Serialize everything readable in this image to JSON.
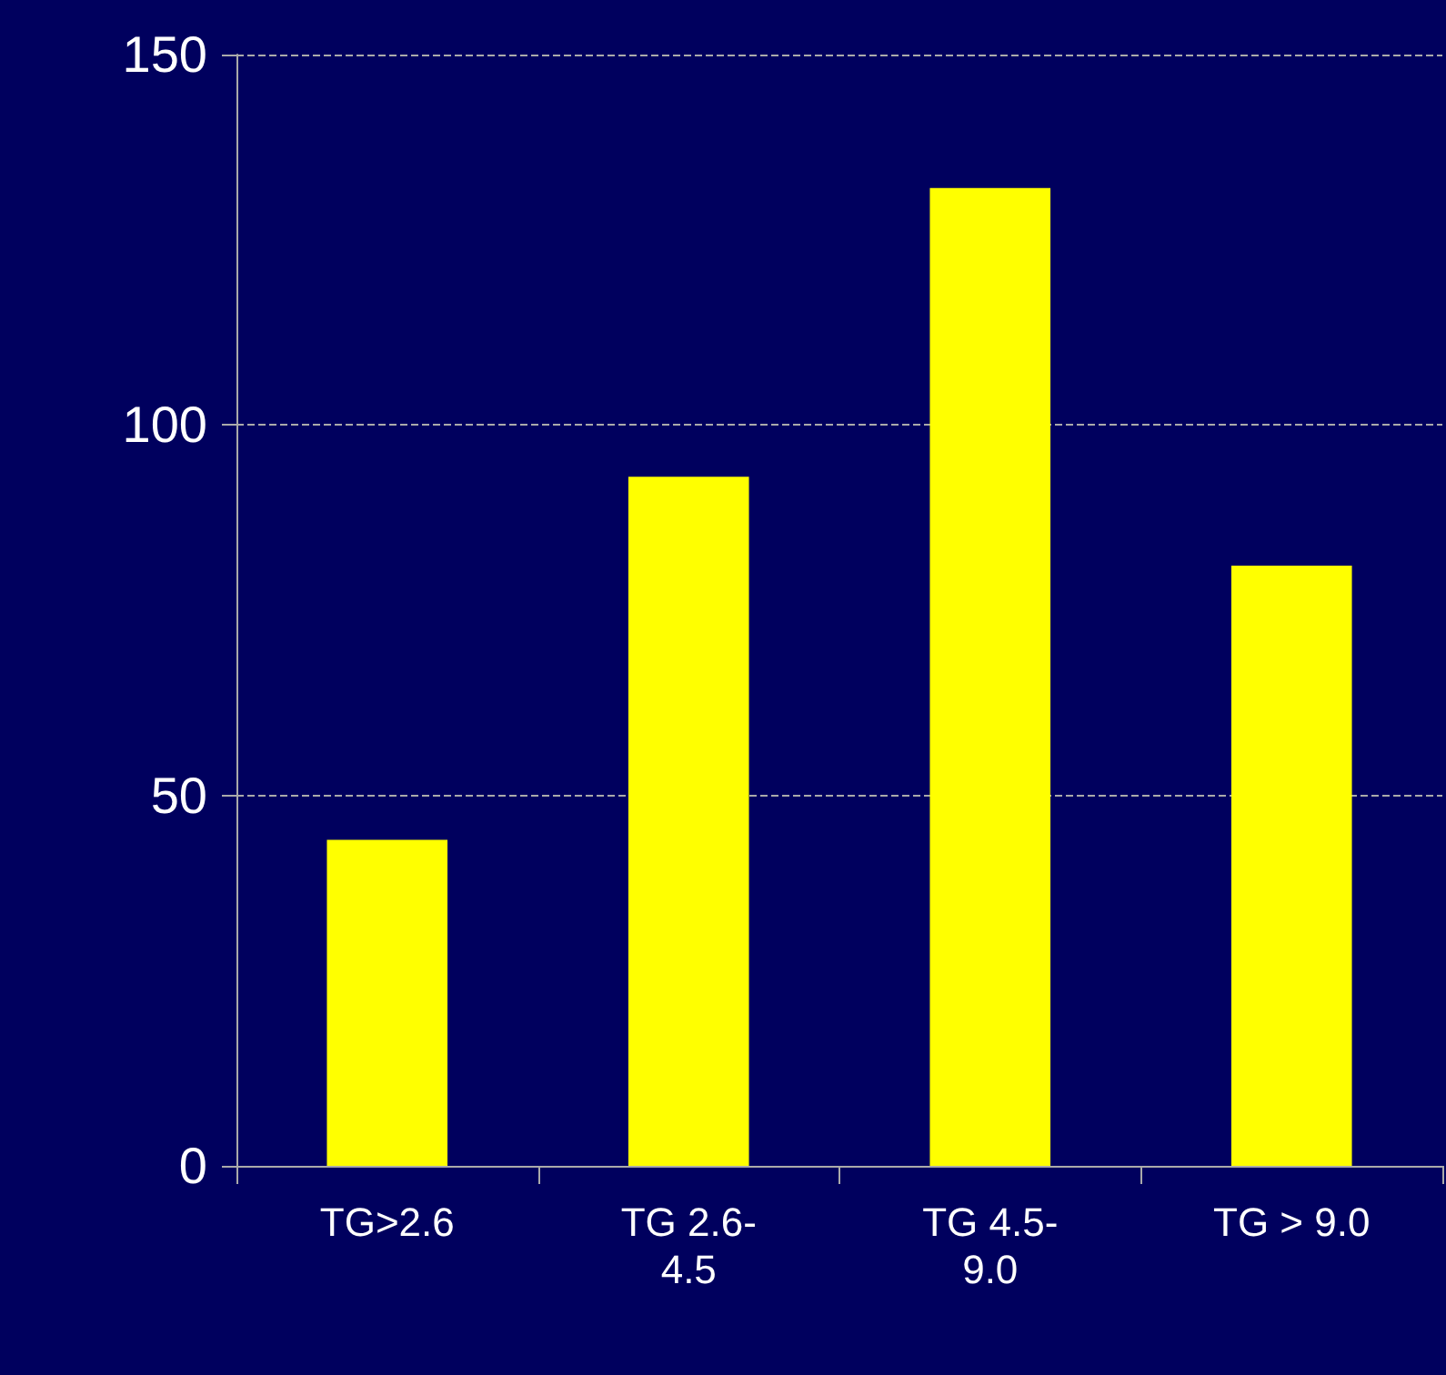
{
  "chart_data": {
    "type": "bar",
    "categories": [
      "TG>2.6",
      "TG 2.6-4.5",
      "TG 4.5-9.0",
      "TG > 9.0"
    ],
    "values": [
      44,
      93,
      132,
      81
    ],
    "color": "#ffff00",
    "ylim": [
      0,
      150
    ],
    "yticks": [
      0,
      50,
      100,
      150
    ],
    "grid": "y",
    "line_style": "dashed"
  }
}
